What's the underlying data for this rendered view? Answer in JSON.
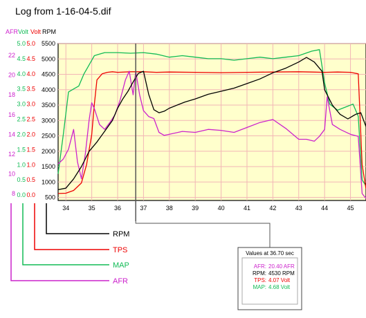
{
  "title": "Log from 1-16-04-5.dif",
  "colors": {
    "rpm": "#000000",
    "tps": "#ee0000",
    "map": "#11bb55",
    "afr": "#cc22cc",
    "plot_bg": "#ffffcc",
    "grid": "#f2b6b6"
  },
  "axis_headers": {
    "afr": "AFR",
    "map": "Volt",
    "tps": "Volt",
    "rpm": "RPM"
  },
  "legend": {
    "rpm": "RPM",
    "tps": "TPS",
    "map": "MAP",
    "afr": "AFR"
  },
  "values_box": {
    "title": "Values at 36.70 sec",
    "rows": [
      {
        "label": "AFR:",
        "value": "20.40 AFR",
        "color": "#cc22cc"
      },
      {
        "label": "RPM:",
        "value": "4530 RPM",
        "color": "#000000"
      },
      {
        "label": "TPS:",
        "value": "4.07 Volt",
        "color": "#ee0000"
      },
      {
        "label": "MAP:",
        "value": "4.68 Volt",
        "color": "#11bb55"
      }
    ]
  },
  "chart_data": {
    "type": "line",
    "xlabel": "",
    "xlim": [
      33.7,
      45.6
    ],
    "x_ticks": [
      34,
      35,
      36,
      37,
      38,
      39,
      40,
      41,
      42,
      43,
      44,
      45
    ],
    "cursor_x": 36.7,
    "y_axes": {
      "afr": {
        "ticks": [
          8,
          10,
          12,
          14,
          16,
          18,
          20,
          22
        ],
        "range": [
          7.3,
          23.2
        ]
      },
      "map": {
        "ticks": [
          0.0,
          0.5,
          1.0,
          1.5,
          2.0,
          2.5,
          3.0,
          3.5,
          4.0,
          4.5,
          5.0
        ],
        "range": [
          -0.18,
          5.0
        ]
      },
      "tps": {
        "ticks": [
          0.0,
          0.5,
          1.0,
          1.5,
          2.0,
          2.5,
          3.0,
          3.5,
          4.0,
          4.5,
          5.0
        ],
        "range": [
          -0.18,
          5.0
        ]
      },
      "rpm": {
        "ticks": [
          500,
          1000,
          1500,
          2000,
          2500,
          3000,
          3500,
          4000,
          4500,
          5000,
          5500
        ],
        "range": [
          400,
          5500
        ]
      }
    },
    "series": [
      {
        "name": "RPM",
        "axis": "rpm",
        "x": [
          33.7,
          34.0,
          34.3,
          34.6,
          34.9,
          35.2,
          35.5,
          35.8,
          36.0,
          36.2,
          36.4,
          36.6,
          36.8,
          37.0,
          37.2,
          37.4,
          37.6,
          37.8,
          38.0,
          38.3,
          38.6,
          39.0,
          39.5,
          40.0,
          40.5,
          41.0,
          41.5,
          42.0,
          42.5,
          43.0,
          43.3,
          43.6,
          43.9,
          44.0,
          44.3,
          44.6,
          44.9,
          45.2,
          45.4,
          45.6
        ],
        "y": [
          750,
          800,
          1100,
          1500,
          2000,
          2300,
          2650,
          3000,
          3400,
          3700,
          3950,
          4250,
          4530,
          4600,
          3850,
          3350,
          3250,
          3300,
          3400,
          3500,
          3600,
          3700,
          3850,
          3950,
          4050,
          4200,
          4350,
          4550,
          4700,
          4900,
          5050,
          4900,
          4600,
          4000,
          3500,
          3200,
          3050,
          3200,
          3250,
          2800
        ]
      },
      {
        "name": "TPS",
        "axis": "tps",
        "x": [
          33.7,
          34.0,
          34.3,
          34.6,
          34.8,
          35.0,
          35.1,
          35.2,
          35.4,
          35.6,
          35.8,
          36.0,
          36.5,
          37.0,
          37.5,
          38.0,
          39.0,
          40.0,
          41.0,
          42.0,
          43.0,
          43.5,
          44.0,
          44.5,
          45.0,
          45.3,
          45.45,
          45.6
        ],
        "y": [
          0.05,
          0.06,
          0.15,
          0.4,
          1.0,
          2.0,
          3.0,
          3.8,
          4.0,
          4.05,
          4.07,
          4.05,
          4.07,
          4.07,
          4.05,
          4.06,
          4.05,
          4.04,
          4.05,
          4.06,
          4.07,
          4.06,
          4.05,
          4.06,
          4.05,
          4.0,
          1.0,
          0.2
        ]
      },
      {
        "name": "MAP",
        "axis": "map",
        "x": [
          33.7,
          33.9,
          34.1,
          34.3,
          34.5,
          34.7,
          34.9,
          35.1,
          35.3,
          35.5,
          36.0,
          36.5,
          37.0,
          37.5,
          38.0,
          38.5,
          39.0,
          39.5,
          40.0,
          40.5,
          41.0,
          41.5,
          42.0,
          42.5,
          43.0,
          43.5,
          43.8,
          44.0,
          44.2,
          44.5,
          44.8,
          45.1,
          45.3,
          45.45,
          45.6
        ],
        "y": [
          0.7,
          2.0,
          3.4,
          3.5,
          3.6,
          4.0,
          4.3,
          4.6,
          4.65,
          4.7,
          4.7,
          4.68,
          4.7,
          4.65,
          4.55,
          4.6,
          4.55,
          4.5,
          4.5,
          4.45,
          4.5,
          4.55,
          4.5,
          4.55,
          4.6,
          4.75,
          4.8,
          3.7,
          3.0,
          2.8,
          2.9,
          3.0,
          2.6,
          0.5,
          0.3
        ]
      },
      {
        "name": "AFR",
        "axis": "afr",
        "x": [
          33.7,
          33.9,
          34.1,
          34.3,
          34.45,
          34.6,
          34.75,
          34.9,
          35.0,
          35.1,
          35.3,
          35.5,
          35.7,
          35.9,
          36.1,
          36.3,
          36.45,
          36.6,
          36.7,
          36.85,
          37.0,
          37.2,
          37.4,
          37.6,
          37.8,
          38.0,
          38.5,
          39.0,
          39.5,
          40.0,
          40.5,
          41.0,
          41.5,
          42.0,
          42.5,
          43.0,
          43.3,
          43.6,
          43.8,
          44.0,
          44.1,
          44.3,
          44.6,
          45.0,
          45.3,
          45.45,
          45.6
        ],
        "y": [
          11.0,
          11.5,
          12.5,
          14.5,
          11.2,
          9.5,
          12.0,
          15.5,
          17.2,
          16.6,
          15.0,
          14.5,
          15.2,
          16.0,
          17.5,
          19.5,
          20.4,
          18.0,
          20.4,
          18.0,
          16.4,
          15.8,
          15.6,
          14.2,
          13.9,
          14.0,
          14.3,
          14.2,
          14.5,
          14.4,
          14.2,
          14.7,
          15.2,
          15.5,
          14.6,
          13.5,
          13.5,
          13.3,
          13.8,
          14.5,
          17.8,
          15.0,
          14.5,
          14.0,
          13.8,
          8.0,
          7.5
        ]
      }
    ]
  }
}
